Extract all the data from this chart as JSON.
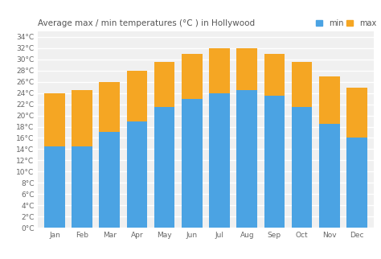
{
  "months": [
    "Jan",
    "Feb",
    "Mar",
    "Apr",
    "May",
    "Jun",
    "Jul",
    "Aug",
    "Sep",
    "Oct",
    "Nov",
    "Dec"
  ],
  "min_temps": [
    14.5,
    14.5,
    17,
    19,
    21.5,
    23,
    24,
    24.5,
    23.5,
    21.5,
    18.5,
    16
  ],
  "max_temps": [
    24,
    24.5,
    26,
    28,
    29.5,
    31,
    32,
    32,
    31,
    29.5,
    27,
    25
  ],
  "min_color": "#4ba3e3",
  "max_color": "#f5a623",
  "bg_color": "#ffffff",
  "plot_bg_color": "#f0f0f0",
  "title": "Average max / min temperatures (°C ) in Hollywood",
  "ylabel_ticks": [
    "0°C",
    "2°C",
    "4°C",
    "6°C",
    "8°C",
    "10°C",
    "12°C",
    "14°C",
    "16°C",
    "18°C",
    "20°C",
    "22°C",
    "24°C",
    "26°C",
    "28°C",
    "30°C",
    "32°C",
    "34°C"
  ],
  "ytick_vals": [
    0,
    2,
    4,
    6,
    8,
    10,
    12,
    14,
    16,
    18,
    20,
    22,
    24,
    26,
    28,
    30,
    32,
    34
  ],
  "ylim": [
    0,
    35
  ],
  "legend_min": "min",
  "legend_max": "max",
  "title_fontsize": 7.5,
  "tick_fontsize": 6.5,
  "legend_fontsize": 7
}
